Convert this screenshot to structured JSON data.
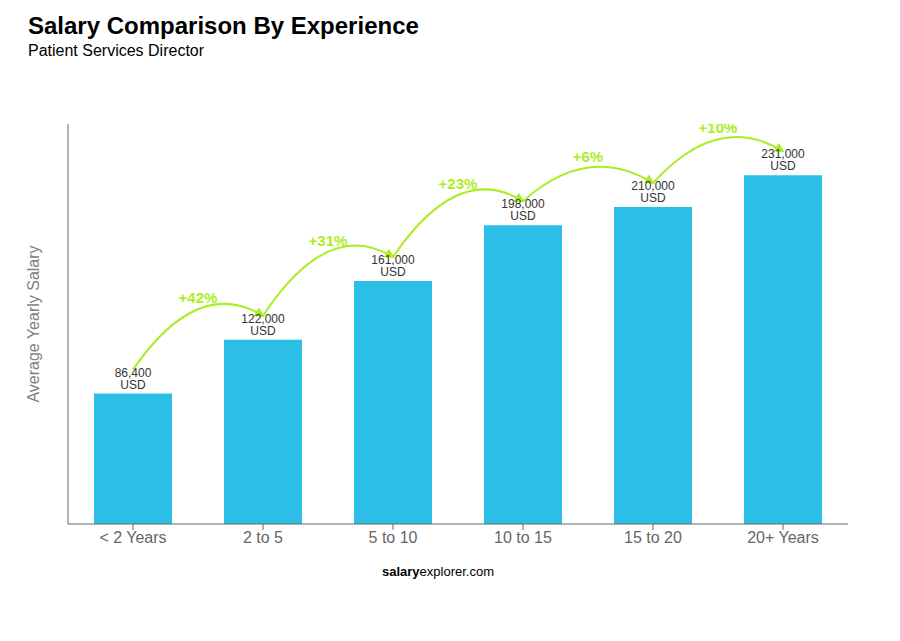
{
  "chart_data": {
    "type": "bar",
    "title": "Salary Comparison By Experience",
    "subtitle": "Patient Services Director",
    "categories": [
      "< 2 Years",
      "2 to 5",
      "5 to 10",
      "10 to 15",
      "15 to 20",
      "20+ Years"
    ],
    "values": [
      86400,
      122000,
      161000,
      198000,
      210000,
      231000
    ],
    "value_labels": [
      "86,400 USD",
      "122,000 USD",
      "161,000 USD",
      "198,000 USD",
      "210,000 USD",
      "231,000 USD"
    ],
    "color": "#2bbfe8",
    "ylabel": "Average Yearly Salary",
    "ylim": [
      0,
      265000
    ],
    "yticks": [],
    "tick_labels": "x",
    "grid": false,
    "data_labels": true,
    "annotations": [
      {
        "text": "+42%",
        "color": "#aaee22"
      },
      {
        "text": "+31%",
        "color": "#aaee22"
      },
      {
        "text": "+23%",
        "color": "#aaee22"
      },
      {
        "text": "+6%",
        "color": "#aaee22"
      },
      {
        "text": "+10%",
        "color": "#aaee22"
      }
    ],
    "footer": [
      "salary",
      "explorer.com"
    ]
  }
}
